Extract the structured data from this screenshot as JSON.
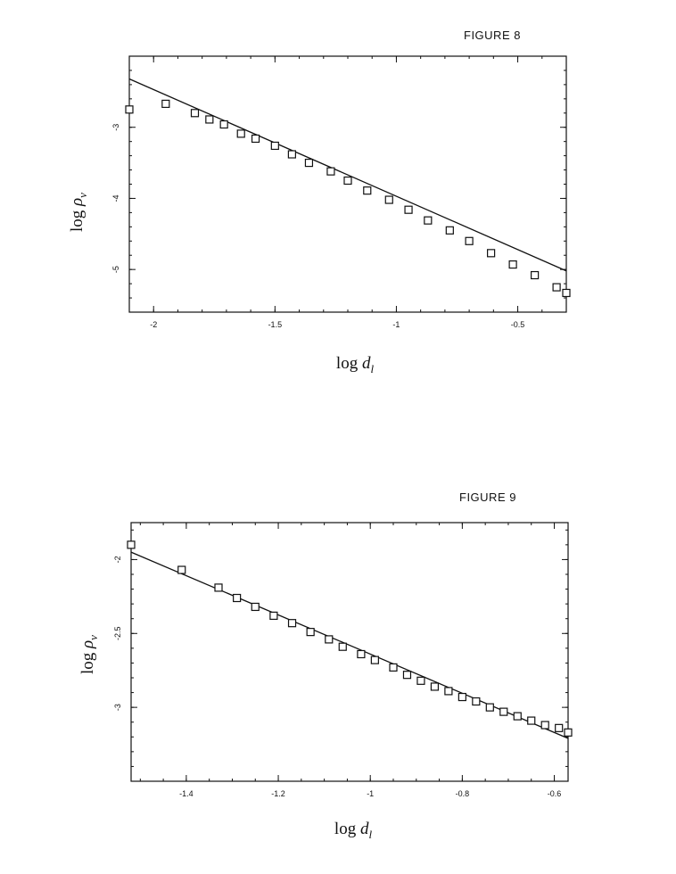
{
  "chart_data": [
    {
      "type": "scatter",
      "title": "FIGURE  8",
      "xlabel": "log d_l",
      "ylabel": "log ρ_v",
      "xlim": [
        -2.1,
        -0.3
      ],
      "ylim": [
        -5.6,
        -2.0
      ],
      "x_major_ticks": [
        -2,
        -1.5,
        -1,
        -0.5
      ],
      "x_tick_labels": [
        "-2",
        "-1.5",
        "-1",
        "-0.5"
      ],
      "y_major_ticks": [
        -3,
        -4,
        -5
      ],
      "y_tick_labels": [
        "-3",
        "-4",
        "-5"
      ],
      "grid": false,
      "marker": "open-square",
      "fit_line": {
        "x": [
          -2.1,
          -0.3
        ],
        "y": [
          -2.32,
          -5.02
        ]
      },
      "series": [
        {
          "x": [
            -2.1,
            -1.95,
            -1.83,
            -1.77,
            -1.71,
            -1.64,
            -1.58,
            -1.5,
            -1.43,
            -1.36,
            -1.27,
            -1.2,
            -1.12,
            -1.03,
            -0.95,
            -0.87,
            -0.78,
            -0.7,
            -0.61,
            -0.52,
            -0.43,
            -0.34,
            -0.3
          ],
          "y": [
            -2.75,
            -2.67,
            -2.8,
            -2.89,
            -2.96,
            -3.09,
            -3.16,
            -3.26,
            -3.38,
            -3.5,
            -3.62,
            -3.75,
            -3.89,
            -4.02,
            -4.16,
            -4.31,
            -4.45,
            -4.6,
            -4.77,
            -4.93,
            -5.08,
            -5.25,
            -5.33
          ]
        }
      ]
    },
    {
      "type": "scatter",
      "title": "FIGURE  9",
      "xlabel": "log d_l",
      "ylabel": "log ρ_v",
      "xlim": [
        -1.52,
        -0.57
      ],
      "ylim": [
        -3.5,
        -1.75
      ],
      "x_major_ticks": [
        -1.4,
        -1.2,
        -1,
        -0.8,
        -0.6
      ],
      "x_tick_labels": [
        "-1.4",
        "-1.2",
        "-1",
        "-0.8",
        "-0.6"
      ],
      "y_major_ticks": [
        -2,
        -2.5,
        -3
      ],
      "y_tick_labels": [
        "-2",
        "-2.5",
        "-3"
      ],
      "grid": false,
      "marker": "open-square",
      "fit_line": {
        "x": [
          -1.52,
          -0.57
        ],
        "y": [
          -1.95,
          -3.21
        ]
      },
      "series": [
        {
          "x": [
            -1.52,
            -1.41,
            -1.33,
            -1.29,
            -1.25,
            -1.21,
            -1.17,
            -1.13,
            -1.09,
            -1.06,
            -1.02,
            -0.99,
            -0.95,
            -0.92,
            -0.89,
            -0.86,
            -0.83,
            -0.8,
            -0.77,
            -0.74,
            -0.71,
            -0.68,
            -0.65,
            -0.62,
            -0.59,
            -0.57
          ],
          "y": [
            -1.9,
            -2.07,
            -2.19,
            -2.26,
            -2.32,
            -2.38,
            -2.43,
            -2.49,
            -2.54,
            -2.59,
            -2.64,
            -2.68,
            -2.73,
            -2.78,
            -2.82,
            -2.86,
            -2.89,
            -2.93,
            -2.96,
            -3.0,
            -3.03,
            -3.06,
            -3.09,
            -3.12,
            -3.14,
            -3.17
          ]
        }
      ]
    }
  ]
}
